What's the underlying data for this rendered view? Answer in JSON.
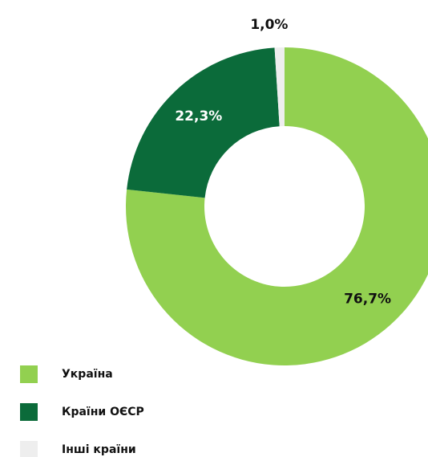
{
  "chart_data": {
    "type": "pie",
    "donut": true,
    "categories": [
      "Україна",
      "Країни ОЄСР",
      "Інші країни"
    ],
    "values": [
      76.7,
      22.3,
      1.0
    ],
    "value_labels": [
      "76,7%",
      "22,3%",
      "1,0%"
    ],
    "colors": [
      "#92d050",
      "#0b6b3a",
      "#eeeeee"
    ]
  }
}
